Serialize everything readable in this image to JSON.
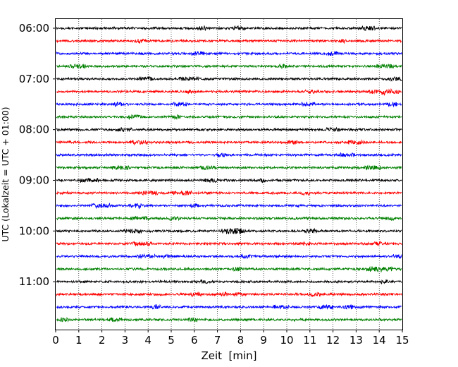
{
  "chart_data": {
    "type": "line",
    "subtype": "helicorder",
    "title": "",
    "xlabel": "Zeit  [min]",
    "ylabel": "UTC (Lokalzeit = UTC + 01:00)",
    "xlim": [
      0,
      15
    ],
    "x_ticks": [
      "0",
      "1",
      "2",
      "3",
      "4",
      "5",
      "6",
      "7",
      "8",
      "9",
      "10",
      "11",
      "12",
      "13",
      "14",
      "15"
    ],
    "y_axis": {
      "start": "06:00",
      "end": "12:00",
      "trace_minutes": 15,
      "y_ticks": [
        "06:00",
        "07:00",
        "08:00",
        "09:00",
        "10:00",
        "11:00"
      ]
    },
    "grid": "vertical-dotted",
    "trace_colors": [
      "#000000",
      "#ff0000",
      "#0000ff",
      "#008000"
    ],
    "traces": [
      {
        "start": "06:00",
        "color": "#000000"
      },
      {
        "start": "06:15",
        "color": "#ff0000"
      },
      {
        "start": "06:30",
        "color": "#0000ff"
      },
      {
        "start": "06:45",
        "color": "#008000"
      },
      {
        "start": "07:00",
        "color": "#000000"
      },
      {
        "start": "07:15",
        "color": "#ff0000"
      },
      {
        "start": "07:30",
        "color": "#0000ff"
      },
      {
        "start": "07:45",
        "color": "#008000"
      },
      {
        "start": "08:00",
        "color": "#000000"
      },
      {
        "start": "08:15",
        "color": "#ff0000"
      },
      {
        "start": "08:30",
        "color": "#0000ff"
      },
      {
        "start": "08:45",
        "color": "#008000"
      },
      {
        "start": "09:00",
        "color": "#000000"
      },
      {
        "start": "09:15",
        "color": "#ff0000"
      },
      {
        "start": "09:30",
        "color": "#0000ff"
      },
      {
        "start": "09:45",
        "color": "#008000"
      },
      {
        "start": "10:00",
        "color": "#000000"
      },
      {
        "start": "10:15",
        "color": "#ff0000"
      },
      {
        "start": "10:30",
        "color": "#0000ff"
      },
      {
        "start": "10:45",
        "color": "#008000"
      },
      {
        "start": "11:00",
        "color": "#000000"
      },
      {
        "start": "11:15",
        "color": "#ff0000"
      },
      {
        "start": "11:30",
        "color": "#0000ff"
      },
      {
        "start": "11:45",
        "color": "#008000"
      }
    ]
  }
}
